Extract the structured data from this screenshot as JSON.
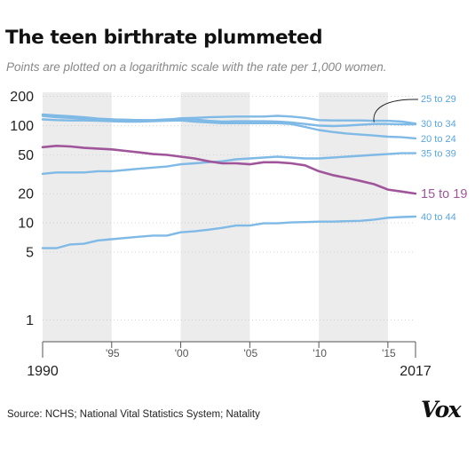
{
  "title": "The teen birthrate plummeted",
  "subtitle": "Points are plotted on a logarithmic scale with the rate per 1,000 women.",
  "source": "Source: NCHS; National Vital Statistics System; Natality",
  "logo": "Vox",
  "colors": {
    "background": "#ffffff",
    "band": "#ececec",
    "axis": "#555555",
    "grid": "#bbbbbb",
    "series_default": "#7fb9e6",
    "series_highlight": "#a0559b",
    "label_default": "#5aa6e0",
    "label_highlight": "#a0559b"
  },
  "chart_data": {
    "type": "line",
    "y_scale": "log",
    "ylim": [
      0.6,
      220
    ],
    "xlim": [
      1990,
      2017
    ],
    "y_ticks": [
      {
        "value": 200,
        "label": "200"
      },
      {
        "value": 100,
        "label": "100"
      },
      {
        "value": 50,
        "label": "50"
      },
      {
        "value": 20,
        "label": "20"
      },
      {
        "value": 10,
        "label": "10"
      },
      {
        "value": 5,
        "label": "5"
      },
      {
        "value": 1,
        "label": "1"
      }
    ],
    "x_ticks": [
      {
        "value": 1990,
        "label": "1990",
        "size": "long"
      },
      {
        "value": 1995,
        "label": "'95",
        "size": "short"
      },
      {
        "value": 2000,
        "label": "'00",
        "size": "short"
      },
      {
        "value": 2005,
        "label": "'05",
        "size": "short"
      },
      {
        "value": 2010,
        "label": "'10",
        "size": "short"
      },
      {
        "value": 2015,
        "label": "'15",
        "size": "short"
      },
      {
        "value": 2017,
        "label": "2017",
        "size": "long"
      }
    ],
    "shaded_bands": [
      [
        1990,
        1995
      ],
      [
        2000,
        2005
      ],
      [
        2010,
        2015
      ]
    ],
    "grid": false,
    "x": [
      1990,
      1991,
      1992,
      1993,
      1994,
      1995,
      1996,
      1997,
      1998,
      1999,
      2000,
      2001,
      2002,
      2003,
      2004,
      2005,
      2006,
      2007,
      2008,
      2009,
      2010,
      2011,
      2012,
      2013,
      2014,
      2015,
      2016,
      2017
    ],
    "series": [
      {
        "name": "25 to 29",
        "highlight": false,
        "label_pos": "top-callout",
        "values": [
          130,
          127,
          125,
          122,
          118,
          116,
          115,
          114,
          114,
          116,
          117,
          116,
          112,
          110,
          111,
          111,
          111,
          110,
          108,
          104,
          100,
          99,
          100,
          102,
          104,
          104,
          103,
          103
        ]
      },
      {
        "name": "30 to 34",
        "highlight": false,
        "label_pos": "right",
        "values": [
          126,
          122,
          120,
          118,
          117,
          116,
          115,
          114,
          113,
          115,
          119,
          120,
          122,
          123,
          124,
          124,
          124,
          126,
          124,
          120,
          114,
          113,
          113,
          113,
          112,
          112,
          110,
          105
        ]
      },
      {
        "name": "20 to 24",
        "highlight": false,
        "label_pos": "right",
        "values": [
          116,
          114,
          113,
          113,
          112,
          111,
          110,
          110,
          111,
          112,
          113,
          110,
          108,
          106,
          106,
          106,
          106,
          106,
          104,
          97,
          90,
          86,
          83,
          81,
          79,
          77,
          76,
          74
        ]
      },
      {
        "name": "35 to 39",
        "highlight": false,
        "label_pos": "right",
        "values": [
          32,
          33,
          33,
          33,
          34,
          34,
          35,
          36,
          37,
          38,
          40,
          41,
          42,
          43,
          45,
          46,
          47,
          48,
          47,
          46,
          46,
          47,
          48,
          49,
          50,
          51,
          52,
          52
        ]
      },
      {
        "name": "15 to 19",
        "highlight": true,
        "label_pos": "right",
        "values": [
          60,
          62,
          61,
          59,
          58,
          57,
          55,
          53,
          51,
          50,
          48,
          46,
          43,
          41,
          41,
          40,
          42,
          42,
          41,
          39,
          34,
          31,
          29,
          27,
          25,
          22,
          21,
          20
        ]
      },
      {
        "name": "40 to 44",
        "highlight": false,
        "label_pos": "right",
        "values": [
          5.5,
          5.5,
          6,
          6.1,
          6.6,
          6.8,
          7.0,
          7.2,
          7.4,
          7.4,
          8.0,
          8.2,
          8.5,
          8.9,
          9.4,
          9.4,
          9.9,
          9.9,
          10.1,
          10.2,
          10.3,
          10.3,
          10.4,
          10.5,
          10.8,
          11.3,
          11.5,
          11.6
        ]
      }
    ]
  }
}
